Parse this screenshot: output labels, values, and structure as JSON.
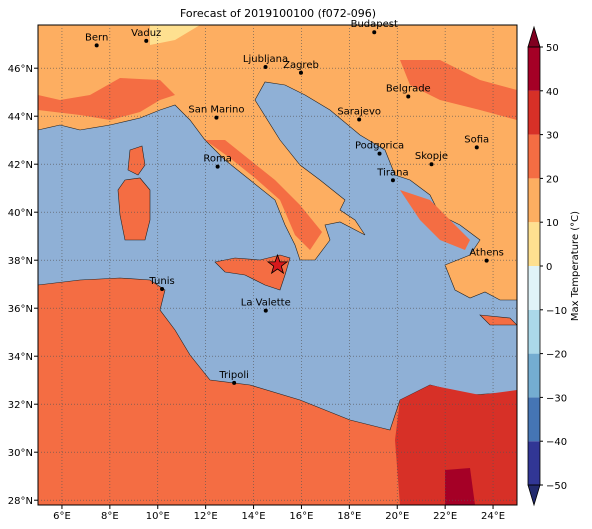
{
  "map": {
    "title": "Forecast of 2019100100 (f072-096)",
    "xlim": [
      5,
      25
    ],
    "ylim": [
      27.8,
      47.8
    ],
    "xticks": [
      {
        "value": 6,
        "label": "6°E"
      },
      {
        "value": 8,
        "label": "8°E"
      },
      {
        "value": 10,
        "label": "10°E"
      },
      {
        "value": 12,
        "label": "12°E"
      },
      {
        "value": 14,
        "label": "14°E"
      },
      {
        "value": 16,
        "label": "16°E"
      },
      {
        "value": 18,
        "label": "18°E"
      },
      {
        "value": 20,
        "label": "20°E"
      },
      {
        "value": 22,
        "label": "22°E"
      },
      {
        "value": 24,
        "label": "24°E"
      }
    ],
    "yticks": [
      {
        "value": 28,
        "label": "28°N"
      },
      {
        "value": 30,
        "label": "30°N"
      },
      {
        "value": 32,
        "label": "32°N"
      },
      {
        "value": 34,
        "label": "34°N"
      },
      {
        "value": 36,
        "label": "36°N"
      },
      {
        "value": 38,
        "label": "38°N"
      },
      {
        "value": 40,
        "label": "40°N"
      },
      {
        "value": 42,
        "label": "42°N"
      },
      {
        "value": 44,
        "label": "44°N"
      },
      {
        "value": 46,
        "label": "46°N"
      }
    ],
    "grid": true,
    "cities": [
      {
        "name": "Bern",
        "lon": 7.45,
        "lat": 46.95
      },
      {
        "name": "Vaduz",
        "lon": 9.52,
        "lat": 47.14
      },
      {
        "name": "Budapest",
        "lon": 19.04,
        "lat": 47.5
      },
      {
        "name": "Ljubljana",
        "lon": 14.5,
        "lat": 46.05
      },
      {
        "name": "Zagreb",
        "lon": 15.98,
        "lat": 45.81
      },
      {
        "name": "Belgrade",
        "lon": 20.46,
        "lat": 44.82
      },
      {
        "name": "San Marino",
        "lon": 12.45,
        "lat": 43.94
      },
      {
        "name": "Sarajevo",
        "lon": 18.41,
        "lat": 43.86
      },
      {
        "name": "Sofia",
        "lon": 23.32,
        "lat": 42.7
      },
      {
        "name": "Roma",
        "lon": 12.5,
        "lat": 41.9
      },
      {
        "name": "Podgorica",
        "lon": 19.26,
        "lat": 42.44
      },
      {
        "name": "Skopje",
        "lon": 21.43,
        "lat": 42.0
      },
      {
        "name": "Tirana",
        "lon": 19.82,
        "lat": 41.33
      },
      {
        "name": "Athens",
        "lon": 23.73,
        "lat": 37.98
      },
      {
        "name": "Tunis",
        "lon": 10.18,
        "lat": 36.8
      },
      {
        "name": "La Valette",
        "lon": 14.51,
        "lat": 35.9
      },
      {
        "name": "Tripoli",
        "lon": 13.19,
        "lat": 32.89
      }
    ],
    "marker": {
      "lon": 15.0,
      "lat": 37.8,
      "color": "#d7191c"
    },
    "colorbar": {
      "label": "Max Temperature (°C)",
      "lim": [
        -50,
        50
      ],
      "ticks": [
        {
          "value": -50,
          "label": "−50"
        },
        {
          "value": -40,
          "label": "−40"
        },
        {
          "value": -30,
          "label": "−30"
        },
        {
          "value": -20,
          "label": "−20"
        },
        {
          "value": -10,
          "label": "−10"
        },
        0,
        10,
        20,
        30,
        40,
        50
      ],
      "colors": [
        "#313695",
        "#4575b4",
        "#74add1",
        "#abd9e9",
        "#e0f3f8",
        "#fee090",
        "#fdae61",
        "#f46d43",
        "#d73027",
        "#a50026"
      ],
      "under": "#222a6e",
      "over": "#800020"
    }
  }
}
